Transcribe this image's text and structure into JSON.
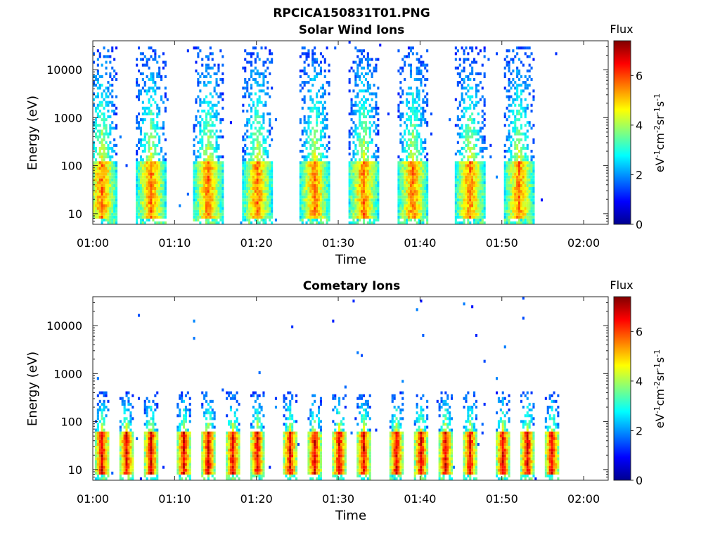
{
  "figure": {
    "title": "RPCICA150831T01.PNG"
  },
  "chart_data": [
    {
      "type": "heatmap",
      "title": "Solar Wind Ions",
      "xlabel": "Time",
      "ylabel": "Energy (eV)",
      "y_scale": "log",
      "ylim": [
        6,
        40000
      ],
      "xlim": [
        "01:00",
        "02:03"
      ],
      "x_ticks": [
        "01:00",
        "01:10",
        "01:20",
        "01:30",
        "01:40",
        "01:50",
        "02:00"
      ],
      "y_ticks": [
        "10",
        "100",
        "1000",
        "10000"
      ],
      "colorbar": {
        "label": "Flux",
        "axis_label": "eV-1cm-2sr-1s-1",
        "range": [
          0,
          7.4
        ],
        "ticks": [
          "0",
          "2",
          "4",
          "6"
        ]
      },
      "colormap": "jet",
      "data_end": "01:57",
      "sweep_period_min": 6.5,
      "sweep_centers": [
        "01:01",
        "01:07",
        "01:14",
        "01:20",
        "01:27",
        "01:33",
        "01:39",
        "01:46",
        "01:52"
      ],
      "core_energy_eV": [
        8,
        120
      ],
      "peak_flux": 6.2,
      "max_energy_eV": 30000,
      "grid": false
    },
    {
      "type": "heatmap",
      "title": "Cometary Ions",
      "xlabel": "Time",
      "ylabel": "Energy (eV)",
      "y_scale": "log",
      "ylim": [
        6,
        40000
      ],
      "xlim": [
        "01:00",
        "02:03"
      ],
      "x_ticks": [
        "01:00",
        "01:10",
        "01:20",
        "01:30",
        "01:40",
        "01:50",
        "02:00"
      ],
      "y_ticks": [
        "10",
        "100",
        "1000",
        "10000"
      ],
      "colorbar": {
        "label": "Flux",
        "axis_label": "eV-1cm-2sr-1s-1",
        "range": [
          0,
          7.4
        ],
        "ticks": [
          "0",
          "2",
          "4",
          "6"
        ]
      },
      "colormap": "jet",
      "data_end": "01:57",
      "sweep_period_min": 3.2,
      "sweep_centers": [
        "01:01",
        "01:04",
        "01:07",
        "01:11",
        "01:14",
        "01:17",
        "01:20",
        "01:24",
        "01:27",
        "01:30",
        "01:33",
        "01:37",
        "01:40",
        "01:43",
        "01:46",
        "01:50",
        "01:53",
        "01:56"
      ],
      "core_energy_eV": [
        8,
        60
      ],
      "peak_flux": 7.2,
      "max_energy_eV": 400,
      "grid": false
    }
  ]
}
